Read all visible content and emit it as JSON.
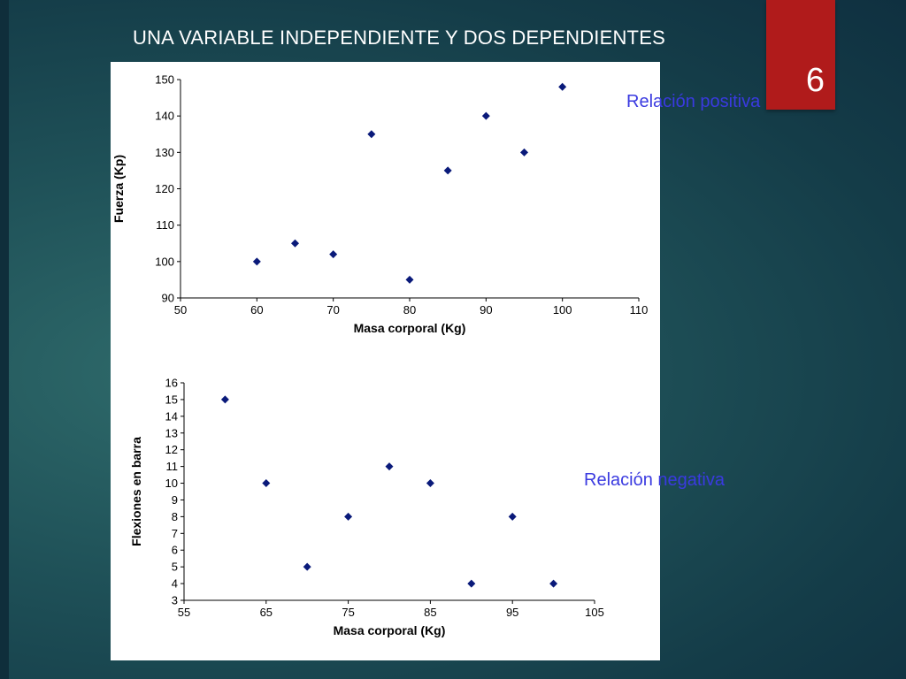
{
  "slide": {
    "title": "UNA VARIABLE INDEPENDIENTE Y DOS DEPENDIENTES",
    "number": "6"
  },
  "annotations": {
    "positive": "Relación positiva",
    "negative": "Relación negativa"
  },
  "colors": {
    "marker": "#0a1a7a",
    "slide_number_bg": "#b01b1b",
    "annotation": "#3a3ae0"
  },
  "chart_data": [
    {
      "type": "scatter",
      "title": "",
      "xlabel": "Masa corporal (Kg)",
      "ylabel": "Fuerza (Kp)",
      "xlim": [
        50,
        110
      ],
      "ylim": [
        90,
        150
      ],
      "xticks": [
        50,
        60,
        70,
        80,
        90,
        100,
        110
      ],
      "yticks": [
        90,
        100,
        110,
        120,
        130,
        140,
        150
      ],
      "grid": false,
      "points": [
        {
          "x": 60,
          "y": 100
        },
        {
          "x": 65,
          "y": 105
        },
        {
          "x": 70,
          "y": 102
        },
        {
          "x": 75,
          "y": 135
        },
        {
          "x": 80,
          "y": 95
        },
        {
          "x": 85,
          "y": 125
        },
        {
          "x": 90,
          "y": 140
        },
        {
          "x": 95,
          "y": 130
        },
        {
          "x": 100,
          "y": 148
        }
      ]
    },
    {
      "type": "scatter",
      "title": "",
      "xlabel": "Masa corporal (Kg)",
      "ylabel": "Flexiones en barra",
      "xlim": [
        55,
        105
      ],
      "ylim": [
        3,
        16
      ],
      "xticks": [
        55,
        65,
        75,
        85,
        95,
        105
      ],
      "yticks": [
        3,
        4,
        5,
        6,
        7,
        8,
        9,
        10,
        11,
        12,
        13,
        14,
        15,
        16
      ],
      "grid": false,
      "points": [
        {
          "x": 60,
          "y": 15
        },
        {
          "x": 65,
          "y": 10
        },
        {
          "x": 70,
          "y": 5
        },
        {
          "x": 75,
          "y": 8
        },
        {
          "x": 80,
          "y": 11
        },
        {
          "x": 85,
          "y": 10
        },
        {
          "x": 90,
          "y": 4
        },
        {
          "x": 95,
          "y": 8
        },
        {
          "x": 100,
          "y": 4
        }
      ]
    }
  ]
}
